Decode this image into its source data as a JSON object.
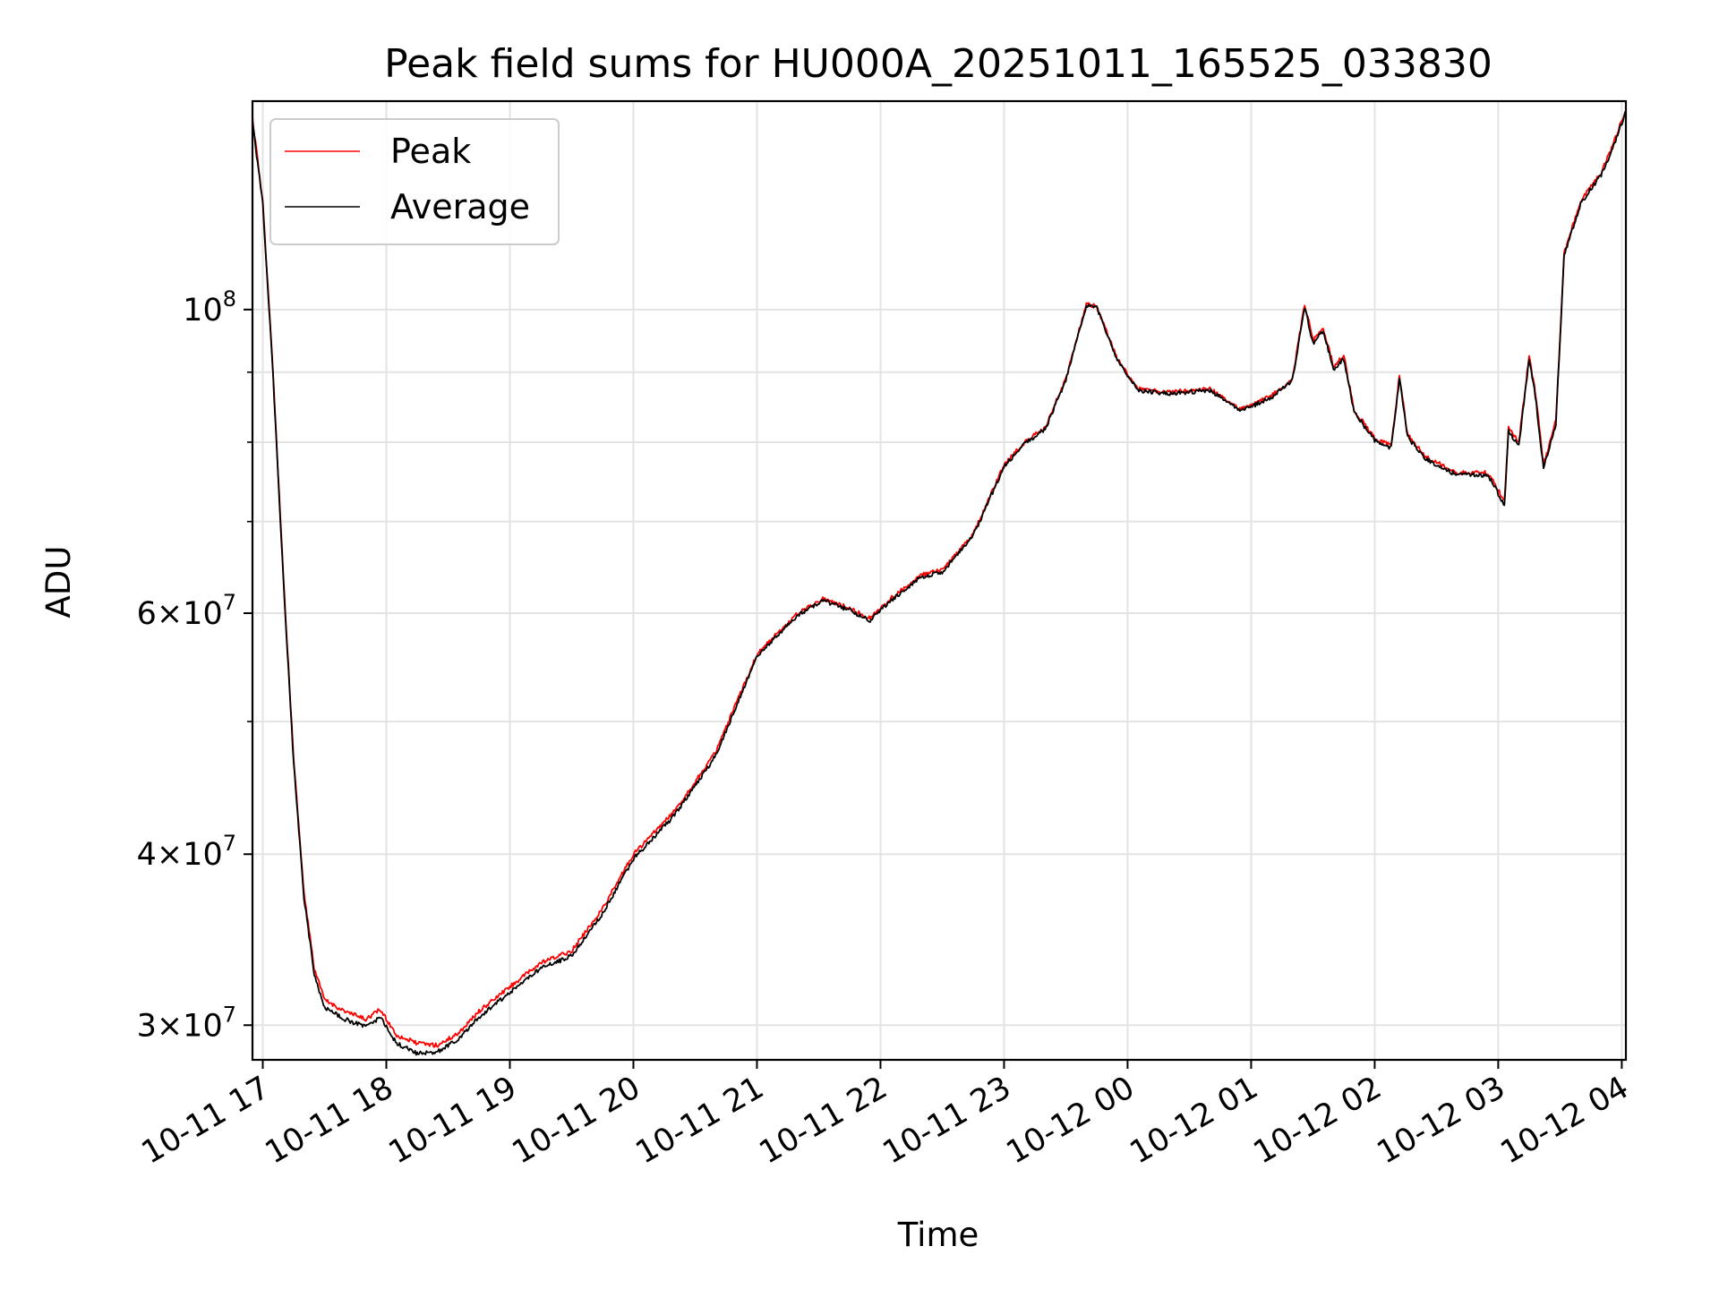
{
  "chart_data": {
    "type": "line",
    "title": "Peak field sums for HU000A_20251011_165525_033830",
    "xlabel": "Time",
    "ylabel": "ADU",
    "yscale": "log",
    "ylim": [
      28300000,
      142000000
    ],
    "xlim": [
      "2025-10-11 16:55",
      "2025-10-12 04:02"
    ],
    "grid": true,
    "legend_position": "top-left",
    "x_ticks": [
      {
        "label": "10-11 17",
        "time": "2025-10-11 17:00"
      },
      {
        "label": "10-11 18",
        "time": "2025-10-11 18:00"
      },
      {
        "label": "10-11 19",
        "time": "2025-10-11 19:00"
      },
      {
        "label": "10-11 20",
        "time": "2025-10-11 20:00"
      },
      {
        "label": "10-11 21",
        "time": "2025-10-11 21:00"
      },
      {
        "label": "10-11 22",
        "time": "2025-10-11 22:00"
      },
      {
        "label": "10-11 23",
        "time": "2025-10-11 23:00"
      },
      {
        "label": "10-12 00",
        "time": "2025-10-12 00:00"
      },
      {
        "label": "10-12 01",
        "time": "2025-10-12 01:00"
      },
      {
        "label": "10-12 02",
        "time": "2025-10-12 02:00"
      },
      {
        "label": "10-12 03",
        "time": "2025-10-12 03:00"
      },
      {
        "label": "10-12 04",
        "time": "2025-10-12 04:00"
      }
    ],
    "y_ticks": [
      {
        "label": "3×10⁷",
        "mantissa": "3",
        "exp": "7",
        "value": 30000000
      },
      {
        "label": "4×10⁷",
        "mantissa": "4",
        "exp": "7",
        "value": 40000000
      },
      {
        "label": "6×10⁷",
        "mantissa": "6",
        "exp": "7",
        "value": 60000000
      },
      {
        "label": "10⁸",
        "mantissa": "",
        "exp": "8",
        "value": 100000000
      }
    ],
    "y_minor_ticks": [
      50000000,
      70000000,
      80000000,
      90000000
    ],
    "series": [
      {
        "name": "Peak",
        "color": "#ff0000",
        "noise": 0.6,
        "points": [
          [
            "2025-10-11 16:55",
            138000000
          ],
          [
            "2025-10-11 17:00",
            120000000
          ],
          [
            "2025-10-11 17:05",
            90000000
          ],
          [
            "2025-10-11 17:10",
            64000000
          ],
          [
            "2025-10-11 17:15",
            47000000
          ],
          [
            "2025-10-11 17:20",
            37500000
          ],
          [
            "2025-10-11 17:25",
            33000000
          ],
          [
            "2025-10-11 17:30",
            31300000
          ],
          [
            "2025-10-11 17:40",
            30700000
          ],
          [
            "2025-10-11 17:50",
            30300000
          ],
          [
            "2025-10-11 17:57",
            30800000
          ],
          [
            "2025-10-11 18:05",
            29500000
          ],
          [
            "2025-10-11 18:15",
            29100000
          ],
          [
            "2025-10-11 18:25",
            29000000
          ],
          [
            "2025-10-11 18:35",
            29600000
          ],
          [
            "2025-10-11 18:45",
            30700000
          ],
          [
            "2025-10-11 19:00",
            32000000
          ],
          [
            "2025-10-11 19:15",
            33300000
          ],
          [
            "2025-10-11 19:30",
            34000000
          ],
          [
            "2025-10-11 19:45",
            36500000
          ],
          [
            "2025-10-11 20:00",
            40000000
          ],
          [
            "2025-10-11 20:20",
            43000000
          ],
          [
            "2025-10-11 20:40",
            47500000
          ],
          [
            "2025-10-11 21:00",
            56000000
          ],
          [
            "2025-10-11 21:10",
            58000000
          ],
          [
            "2025-10-11 21:20",
            60000000
          ],
          [
            "2025-10-11 21:32",
            61500000
          ],
          [
            "2025-10-11 21:45",
            60500000
          ],
          [
            "2025-10-11 21:55",
            59500000
          ],
          [
            "2025-10-11 22:05",
            61500000
          ],
          [
            "2025-10-11 22:20",
            64000000
          ],
          [
            "2025-10-11 22:30",
            64500000
          ],
          [
            "2025-10-11 22:45",
            68500000
          ],
          [
            "2025-10-11 23:00",
            77000000
          ],
          [
            "2025-10-11 23:10",
            80000000
          ],
          [
            "2025-10-11 23:20",
            82000000
          ],
          [
            "2025-10-11 23:30",
            89000000
          ],
          [
            "2025-10-11 23:40",
            101000000
          ],
          [
            "2025-10-11 23:45",
            100500000
          ],
          [
            "2025-10-11 23:55",
            92000000
          ],
          [
            "2025-10-12 00:05",
            87500000
          ],
          [
            "2025-10-12 00:20",
            87000000
          ],
          [
            "2025-10-12 00:40",
            87500000
          ],
          [
            "2025-10-12 00:55",
            84500000
          ],
          [
            "2025-10-12 01:10",
            86500000
          ],
          [
            "2025-10-12 01:20",
            89000000
          ],
          [
            "2025-10-12 01:26",
            101000000
          ],
          [
            "2025-10-12 01:30",
            95000000
          ],
          [
            "2025-10-12 01:35",
            97000000
          ],
          [
            "2025-10-12 01:40",
            91000000
          ],
          [
            "2025-10-12 01:45",
            92500000
          ],
          [
            "2025-10-12 01:50",
            84500000
          ],
          [
            "2025-10-12 02:00",
            80500000
          ],
          [
            "2025-10-12 02:08",
            79500000
          ],
          [
            "2025-10-12 02:12",
            89500000
          ],
          [
            "2025-10-12 02:16",
            81000000
          ],
          [
            "2025-10-12 02:25",
            78000000
          ],
          [
            "2025-10-12 02:40",
            76000000
          ],
          [
            "2025-10-12 02:55",
            76000000
          ],
          [
            "2025-10-12 03:03",
            72500000
          ],
          [
            "2025-10-12 03:05",
            82000000
          ],
          [
            "2025-10-12 03:10",
            80000000
          ],
          [
            "2025-10-12 03:15",
            92500000
          ],
          [
            "2025-10-12 03:18",
            87000000
          ],
          [
            "2025-10-12 03:22",
            77000000
          ],
          [
            "2025-10-12 03:28",
            83000000
          ],
          [
            "2025-10-12 03:32",
            110000000
          ],
          [
            "2025-10-12 03:40",
            120000000
          ],
          [
            "2025-10-12 03:50",
            126000000
          ],
          [
            "2025-10-12 03:55",
            131000000
          ],
          [
            "2025-10-12 04:02",
            140000000
          ]
        ]
      },
      {
        "name": "Average",
        "color": "#000000",
        "noise": 0.6,
        "points": [
          [
            "2025-10-11 16:55",
            137000000
          ],
          [
            "2025-10-11 17:00",
            119500000
          ],
          [
            "2025-10-11 17:05",
            89500000
          ],
          [
            "2025-10-11 17:10",
            63500000
          ],
          [
            "2025-10-11 17:15",
            46700000
          ],
          [
            "2025-10-11 17:20",
            37200000
          ],
          [
            "2025-10-11 17:25",
            32700000
          ],
          [
            "2025-10-11 17:30",
            30900000
          ],
          [
            "2025-10-11 17:40",
            30300000
          ],
          [
            "2025-10-11 17:50",
            29900000
          ],
          [
            "2025-10-11 17:57",
            30400000
          ],
          [
            "2025-10-11 18:05",
            29100000
          ],
          [
            "2025-10-11 18:15",
            28600000
          ],
          [
            "2025-10-11 18:25",
            28700000
          ],
          [
            "2025-10-11 18:35",
            29300000
          ],
          [
            "2025-10-11 18:45",
            30400000
          ],
          [
            "2025-10-11 19:00",
            31700000
          ],
          [
            "2025-10-11 19:15",
            33000000
          ],
          [
            "2025-10-11 19:30",
            33700000
          ],
          [
            "2025-10-11 19:45",
            36200000
          ],
          [
            "2025-10-11 20:00",
            39700000
          ],
          [
            "2025-10-11 20:20",
            42700000
          ],
          [
            "2025-10-11 20:40",
            47200000
          ],
          [
            "2025-10-11 21:00",
            55800000
          ],
          [
            "2025-10-11 21:10",
            57800000
          ],
          [
            "2025-10-11 21:20",
            59800000
          ],
          [
            "2025-10-11 21:32",
            61300000
          ],
          [
            "2025-10-11 21:45",
            60300000
          ],
          [
            "2025-10-11 21:55",
            59300000
          ],
          [
            "2025-10-11 22:05",
            61300000
          ],
          [
            "2025-10-11 22:20",
            63800000
          ],
          [
            "2025-10-11 22:30",
            64300000
          ],
          [
            "2025-10-11 22:45",
            68300000
          ],
          [
            "2025-10-11 23:00",
            76800000
          ],
          [
            "2025-10-11 23:10",
            79800000
          ],
          [
            "2025-10-11 23:20",
            81800000
          ],
          [
            "2025-10-11 23:30",
            88800000
          ],
          [
            "2025-10-11 23:40",
            100800000
          ],
          [
            "2025-10-11 23:45",
            100300000
          ],
          [
            "2025-10-11 23:55",
            91800000
          ],
          [
            "2025-10-12 00:05",
            87300000
          ],
          [
            "2025-10-12 00:20",
            86800000
          ],
          [
            "2025-10-12 00:40",
            87300000
          ],
          [
            "2025-10-12 00:55",
            84300000
          ],
          [
            "2025-10-12 01:10",
            86300000
          ],
          [
            "2025-10-12 01:20",
            88800000
          ],
          [
            "2025-10-12 01:26",
            100500000
          ],
          [
            "2025-10-12 01:30",
            94500000
          ],
          [
            "2025-10-12 01:35",
            96500000
          ],
          [
            "2025-10-12 01:40",
            90500000
          ],
          [
            "2025-10-12 01:45",
            92000000
          ],
          [
            "2025-10-12 01:50",
            84200000
          ],
          [
            "2025-10-12 02:00",
            80200000
          ],
          [
            "2025-10-12 02:08",
            79200000
          ],
          [
            "2025-10-12 02:12",
            89000000
          ],
          [
            "2025-10-12 02:16",
            80700000
          ],
          [
            "2025-10-12 02:25",
            77700000
          ],
          [
            "2025-10-12 02:40",
            75700000
          ],
          [
            "2025-10-12 02:55",
            75700000
          ],
          [
            "2025-10-12 03:03",
            72000000
          ],
          [
            "2025-10-12 03:05",
            81500000
          ],
          [
            "2025-10-12 03:10",
            79500000
          ],
          [
            "2025-10-12 03:15",
            92000000
          ],
          [
            "2025-10-12 03:18",
            86500000
          ],
          [
            "2025-10-12 03:22",
            76500000
          ],
          [
            "2025-10-12 03:28",
            82500000
          ],
          [
            "2025-10-12 03:32",
            109500000
          ],
          [
            "2025-10-12 03:40",
            119500000
          ],
          [
            "2025-10-12 03:50",
            125500000
          ],
          [
            "2025-10-12 03:55",
            130500000
          ],
          [
            "2025-10-12 04:02",
            139500000
          ]
        ]
      }
    ]
  }
}
